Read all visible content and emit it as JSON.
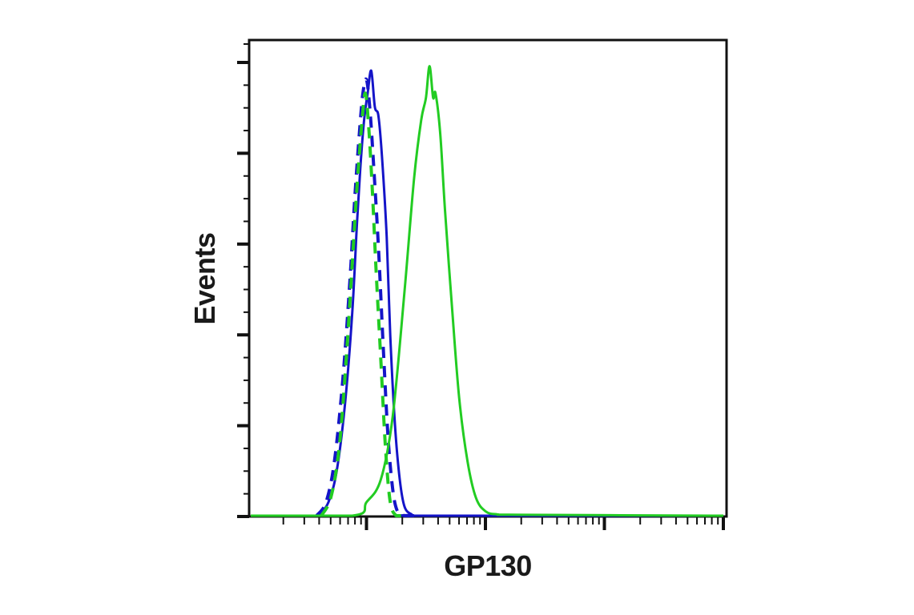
{
  "chart_data": {
    "type": "line",
    "subtype": "flow-cytometry-histogram",
    "title": "",
    "xlabel": "GP130",
    "ylabel": "Events",
    "x_scale": "log",
    "x_decades": 4,
    "x_tick_labels": [],
    "y_tick_labels": [],
    "y_major_ticks": 5,
    "grid": false,
    "legend": null,
    "colors": {
      "blue": "#1414c8",
      "green": "#22cc22",
      "axis": "#111111"
    },
    "series": [
      {
        "name": "blue-solid",
        "color": "#1414c8",
        "style": "solid",
        "x_decade": [
          0.6,
          0.68,
          0.75,
          0.82,
          0.88,
          0.92,
          0.95,
          0.98,
          1.01,
          1.04,
          1.07,
          1.1,
          1.13,
          1.17,
          1.2,
          1.24,
          1.28,
          1.32,
          1.38,
          1.45,
          4.0
        ],
        "y_pct": [
          0,
          3,
          10,
          25,
          45,
          65,
          78,
          88,
          94,
          99,
          91,
          89,
          80,
          62,
          40,
          20,
          8,
          2,
          0.3,
          0,
          0
        ]
      },
      {
        "name": "blue-dashed",
        "color": "#1414c8",
        "style": "dashed",
        "x_decade": [
          0.58,
          0.66,
          0.73,
          0.8,
          0.86,
          0.9,
          0.94,
          0.97,
          1.0,
          1.03,
          1.06,
          1.1,
          1.14,
          1.18,
          1.22,
          1.26,
          1.32,
          1.4
        ],
        "y_pct": [
          0,
          3,
          12,
          30,
          52,
          70,
          85,
          94,
          97,
          90,
          78,
          60,
          38,
          18,
          6,
          1,
          0,
          0
        ]
      },
      {
        "name": "green-dashed",
        "color": "#22cc22",
        "style": "dashed",
        "x_decade": [
          0.62,
          0.7,
          0.77,
          0.83,
          0.88,
          0.92,
          0.96,
          0.99,
          1.02,
          1.05,
          1.08,
          1.12,
          1.16,
          1.2,
          1.25,
          1.3
        ],
        "y_pct": [
          0,
          4,
          15,
          35,
          56,
          73,
          87,
          94,
          86,
          72,
          55,
          35,
          15,
          3,
          0,
          0
        ]
      },
      {
        "name": "green-solid",
        "color": "#22cc22",
        "style": "solid",
        "x_decade": [
          0.0,
          0.88,
          1.0,
          1.12,
          1.22,
          1.32,
          1.4,
          1.46,
          1.5,
          1.53,
          1.56,
          1.58,
          1.62,
          1.66,
          1.72,
          1.78,
          1.85,
          1.92,
          2.0,
          2.1,
          2.3,
          4.0
        ],
        "y_pct": [
          0,
          0,
          3,
          8,
          22,
          50,
          75,
          88,
          93,
          100,
          93,
          94,
          85,
          68,
          46,
          26,
          12,
          4,
          1,
          0.3,
          0.2,
          0
        ]
      }
    ]
  },
  "axes": {
    "x_title": "GP130",
    "y_title": "Events"
  }
}
